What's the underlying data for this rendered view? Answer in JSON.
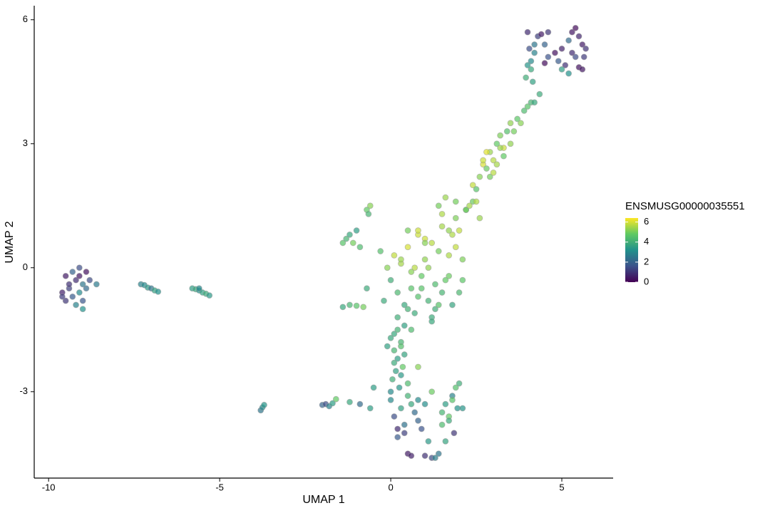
{
  "chart_data": {
    "type": "scatter",
    "xlabel": "UMAP 1",
    "ylabel": "UMAP 2",
    "legend_title": "ENSMUSG00000035551",
    "xlim": [
      -10.42,
      6.5
    ],
    "ylim": [
      -5.09,
      6.34
    ],
    "xticks": [
      -10,
      -5,
      0,
      5
    ],
    "yticks": [
      -3,
      0,
      3,
      6
    ],
    "clim": [
      0,
      6.4
    ],
    "cticks": [
      0,
      2,
      4,
      6
    ],
    "colormap": [
      "#440154",
      "#3b528b",
      "#21918c",
      "#5ec962",
      "#fde725"
    ],
    "x": [
      -9.5,
      -9.4,
      -9.3,
      -9.2,
      -9.1,
      -9.0,
      -8.9,
      -9.6,
      -9.5,
      -9.3,
      -9.1,
      -8.9,
      -9.2,
      -9.0,
      -8.8,
      -9.4,
      -9.1,
      -8.6,
      -9.6,
      -9.0,
      -7.3,
      -7.2,
      -7.1,
      -7.0,
      -6.9,
      -6.8,
      -5.8,
      -5.7,
      -5.6,
      -5.5,
      -5.4,
      -5.3,
      -5.6,
      -3.8,
      -3.75,
      -3.7,
      -2.0,
      -1.9,
      -1.8,
      -1.7,
      -1.6,
      -1.2,
      -0.9,
      -0.6,
      -1.4,
      -1.3,
      -1.2,
      -1.1,
      -1.0,
      -0.9,
      -0.7,
      -0.65,
      -0.6,
      -1.4,
      -1.2,
      -1.0,
      -0.8,
      -0.7,
      -0.3,
      -0.1,
      0.0,
      0.1,
      0.2,
      0.3,
      0.4,
      0.5,
      0.6,
      0.7,
      0.8,
      0.9,
      1.0,
      1.1,
      1.2,
      1.3,
      1.4,
      1.5,
      1.6,
      1.7,
      1.8,
      1.9,
      2.0,
      2.1,
      2.2,
      0.2,
      0.4,
      0.6,
      0.8,
      1.0,
      1.2,
      1.4,
      1.6,
      1.8,
      2.0,
      0.1,
      0.3,
      0.5,
      0.7,
      0.9,
      1.1,
      1.3,
      1.5,
      1.7,
      1.9,
      2.1,
      1.5,
      1.7,
      1.9,
      2.2,
      0.8,
      1.0,
      1.2,
      2.4,
      2.6,
      0.5,
      0.3,
      -0.2,
      0.6,
      1.4,
      2.3,
      2.4,
      2.5,
      2.6,
      2.7,
      2.8,
      2.9,
      3.0,
      3.1,
      3.2,
      3.3,
      3.4,
      3.5,
      3.6,
      3.7,
      3.8,
      3.9,
      4.0,
      4.1,
      4.2,
      2.5,
      2.7,
      2.9,
      3.1,
      3.3,
      3.5,
      2.8,
      3.0,
      3.2,
      4.35,
      4.0,
      4.05,
      4.1,
      4.2,
      4.3,
      4.4,
      4.5,
      4.6,
      4.8,
      4.9,
      5.0,
      5.1,
      5.2,
      5.3,
      5.4,
      5.5,
      5.6,
      5.65,
      5.5,
      5.4,
      5.3,
      5.2,
      5.0,
      4.1,
      4.0,
      3.95,
      4.2,
      4.6,
      5.6,
      5.7,
      4.5,
      4.15,
      0.0,
      0.1,
      0.2,
      0.3,
      0.15,
      0.05,
      0.25,
      0.35,
      0.2,
      0.4,
      0.1,
      0.3,
      0.5,
      -0.1,
      0.8,
      0.0,
      0.0,
      0.1,
      0.2,
      0.4,
      0.5,
      0.6,
      0.8,
      1.0,
      1.2,
      1.4,
      1.5,
      1.6,
      1.7,
      1.8,
      1.9,
      2.0,
      1.95,
      1.85,
      0.3,
      0.5,
      0.7,
      0.9,
      1.1,
      1.3,
      1.5,
      1.7,
      0.6,
      1.0,
      0.2,
      1.8,
      2.1,
      0.4,
      1.6,
      1.2,
      0.8,
      -0.5
    ],
    "values": [
      -0.2,
      -0.5,
      -0.1,
      -0.3,
      0.0,
      -0.4,
      -0.1,
      -0.6,
      -0.8,
      -0.7,
      -0.6,
      -0.5,
      -0.9,
      -1.0,
      -0.3,
      -0.4,
      -0.2,
      -0.4,
      -0.7,
      -0.8,
      -0.4,
      -0.42,
      -0.48,
      -0.5,
      -0.55,
      -0.58,
      -0.5,
      -0.52,
      -0.55,
      -0.6,
      -0.63,
      -0.67,
      -0.5,
      -3.45,
      -3.38,
      -3.32,
      -3.32,
      -3.3,
      -3.35,
      -3.28,
      -3.18,
      -3.25,
      -3.3,
      -3.4,
      0.6,
      0.7,
      0.8,
      0.6,
      0.9,
      0.5,
      1.4,
      1.3,
      1.5,
      -0.95,
      -0.9,
      -0.92,
      -0.95,
      -0.5,
      0.4,
      0.0,
      -0.3,
      0.3,
      -0.6,
      0.1,
      -0.9,
      0.5,
      -0.5,
      -1.1,
      0.8,
      -0.2,
      0.2,
      -0.8,
      0.6,
      -0.4,
      1.5,
      -0.6,
      1.7,
      0.3,
      -0.9,
      1.2,
      0.9,
      -0.3,
      1.4,
      -1.2,
      -1.4,
      -0.1,
      -0.7,
      0.7,
      -1.2,
      0.4,
      -0.3,
      0.8,
      -0.6,
      -1.6,
      0.2,
      -1.0,
      0.0,
      -0.5,
      0.0,
      -1.0,
      1.0,
      -0.2,
      0.5,
      0.2,
      1.3,
      0.9,
      1.6,
      1.4,
      0.9,
      0.6,
      -1.3,
      1.6,
      1.2,
      0.9,
      -1.8,
      -0.8,
      -1.5,
      -0.9,
      1.5,
      2.0,
      1.9,
      2.2,
      2.5,
      2.4,
      2.8,
      2.6,
      3.0,
      3.2,
      2.9,
      3.3,
      3.5,
      3.3,
      3.6,
      3.5,
      3.8,
      3.9,
      4.0,
      4.0,
      1.6,
      2.6,
      2.2,
      2.5,
      2.7,
      3.0,
      2.8,
      2.3,
      2.9,
      4.2,
      5.7,
      5.3,
      5.0,
      5.4,
      5.6,
      5.65,
      5.4,
      5.7,
      5.2,
      5.0,
      5.3,
      4.9,
      4.7,
      5.7,
      5.8,
      5.6,
      5.4,
      5.1,
      4.85,
      5.1,
      5.2,
      5.5,
      4.8,
      4.8,
      4.9,
      4.6,
      5.2,
      5.1,
      4.8,
      5.3,
      4.95,
      4.5,
      -1.7,
      -2.0,
      -2.2,
      -1.9,
      -2.5,
      -2.7,
      -2.9,
      -2.4,
      -1.5,
      -2.1,
      -2.3,
      -2.6,
      -2.8,
      -1.9,
      -2.4,
      -3.0,
      -3.2,
      -3.6,
      -3.9,
      -4.0,
      -4.5,
      -3.3,
      -3.7,
      -4.55,
      -4.6,
      -4.5,
      -3.5,
      -3.3,
      -3.6,
      -3.1,
      -2.9,
      -2.8,
      -3.4,
      -4.0,
      -3.4,
      -3.1,
      -3.5,
      -3.9,
      -4.2,
      -4.6,
      -3.8,
      -3.7,
      -4.55,
      -3.3,
      -4.1,
      -3.2,
      -3.4,
      -3.8,
      -4.2,
      -3.0,
      -3.2,
      -2.9
    ],
    "color_values": [
      0.5,
      1.2,
      2.0,
      0.8,
      1.5,
      2.5,
      0.3,
      0.6,
      1.0,
      1.8,
      3.0,
      2.2,
      2.8,
      3.2,
      1.4,
      0.9,
      0.4,
      2.6,
      1.1,
      1.7,
      2.8,
      3.0,
      3.4,
      2.5,
      3.6,
      3.2,
      3.5,
      3.8,
      3.2,
      3.6,
      3.9,
      3.4,
      3.0,
      2.5,
      3.0,
      3.3,
      2.0,
      1.5,
      2.8,
      3.5,
      4.8,
      3.8,
      2.2,
      3.5,
      4.6,
      4.2,
      3.8,
      5.0,
      3.5,
      4.4,
      4.8,
      4.2,
      5.2,
      3.8,
      4.2,
      4.6,
      5.0,
      3.9,
      4.5,
      5.2,
      4.0,
      5.8,
      4.3,
      5.5,
      3.8,
      6.0,
      4.6,
      3.9,
      5.9,
      4.8,
      5.3,
      4.1,
      5.7,
      4.4,
      5.0,
      4.2,
      5.4,
      5.6,
      3.7,
      5.1,
      5.8,
      4.7,
      5.5,
      4.0,
      3.6,
      5.2,
      4.5,
      5.9,
      3.9,
      5.0,
      4.8,
      5.6,
      4.3,
      3.8,
      5.4,
      4.1,
      5.7,
      4.6,
      5.3,
      4.0,
      5.5,
      4.9,
      5.8,
      5.1,
      5.6,
      5.3,
      5.0,
      4.7,
      5.9,
      5.2,
      3.8,
      4.9,
      5.4,
      5.0,
      4.2,
      3.9,
      4.4,
      4.6,
      5.5,
      5.8,
      4.6,
      5.2,
      6.0,
      4.9,
      5.4,
      5.7,
      4.8,
      5.1,
      5.9,
      4.5,
      5.3,
      5.0,
      4.7,
      5.2,
      4.4,
      4.6,
      4.2,
      3.8,
      5.6,
      5.9,
      5.0,
      5.5,
      4.8,
      5.3,
      6.1,
      5.7,
      5.4,
      3.9,
      0.8,
      1.5,
      3.0,
      2.5,
      1.2,
      0.5,
      2.0,
      1.0,
      0.3,
      1.8,
      0.6,
      0.9,
      3.2,
      0.4,
      0.2,
      0.7,
      0.5,
      1.1,
      0.3,
      1.4,
      0.8,
      2.2,
      3.5,
      3.8,
      3.3,
      4.0,
      2.8,
      1.6,
      0.4,
      0.9,
      0.2,
      3.6,
      3.8,
      4.2,
      3.5,
      4.5,
      3.6,
      4.0,
      3.3,
      4.8,
      4.1,
      3.7,
      3.9,
      3.4,
      4.4,
      3.6,
      5.2,
      3.0,
      3.0,
      1.5,
      0.8,
      1.2,
      0.5,
      3.8,
      2.0,
      0.9,
      1.4,
      2.5,
      4.2,
      3.5,
      4.8,
      2.8,
      4.5,
      4.0,
      3.2,
      1.0,
      3.6,
      4.1,
      2.2,
      1.6,
      3.4,
      2.7,
      4.4,
      3.9,
      0.6,
      3.1,
      1.8,
      4.6,
      3.3,
      2.4,
      3.7,
      4.9,
      3.0,
      3.5
    ]
  }
}
